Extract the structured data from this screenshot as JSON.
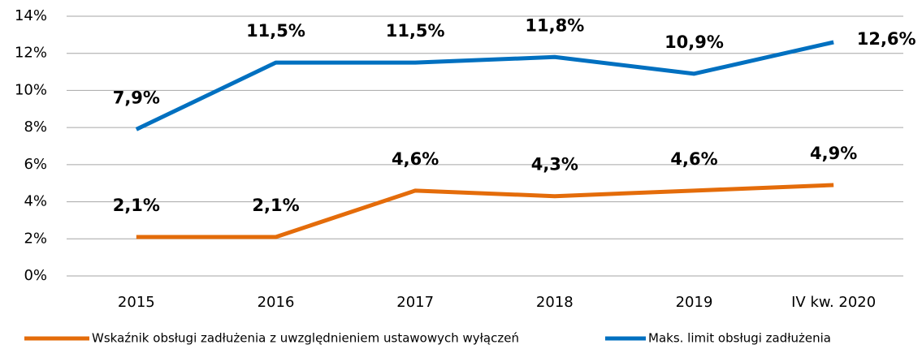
{
  "chart_data": {
    "type": "line",
    "categories": [
      "2015",
      "2016",
      "2017",
      "2018",
      "2019",
      "IV kw. 2020"
    ],
    "series": [
      {
        "name": "Wskaźnik obsługi zadłużenia  z uwzględnieniem ustawowych wyłączeń",
        "color": "#e46c0a",
        "values": [
          2.1,
          2.1,
          4.6,
          4.3,
          4.6,
          4.9
        ],
        "value_labels": [
          "2,1%",
          "2,1%",
          "4,6%",
          "4,3%",
          "4,6%",
          "4,9%"
        ]
      },
      {
        "name": "Maks. limit obsługi zadłużenia",
        "color": "#0070c0",
        "values": [
          7.9,
          11.5,
          11.5,
          11.8,
          10.9,
          12.6
        ],
        "value_labels": [
          "7,9%",
          "11,5%",
          "11,5%",
          "11,8%",
          "10,9%",
          "12,6%"
        ]
      }
    ],
    "ylim": [
      0,
      14
    ],
    "yticks": [
      {
        "value": 0,
        "label": "0%"
      },
      {
        "value": 2,
        "label": "2%"
      },
      {
        "value": 4,
        "label": "4%"
      },
      {
        "value": 6,
        "label": "6%"
      },
      {
        "value": 8,
        "label": "8%"
      },
      {
        "value": 10,
        "label": "10%"
      },
      {
        "value": 12,
        "label": "12%"
      },
      {
        "value": 14,
        "label": "14%"
      }
    ],
    "grid": true
  }
}
